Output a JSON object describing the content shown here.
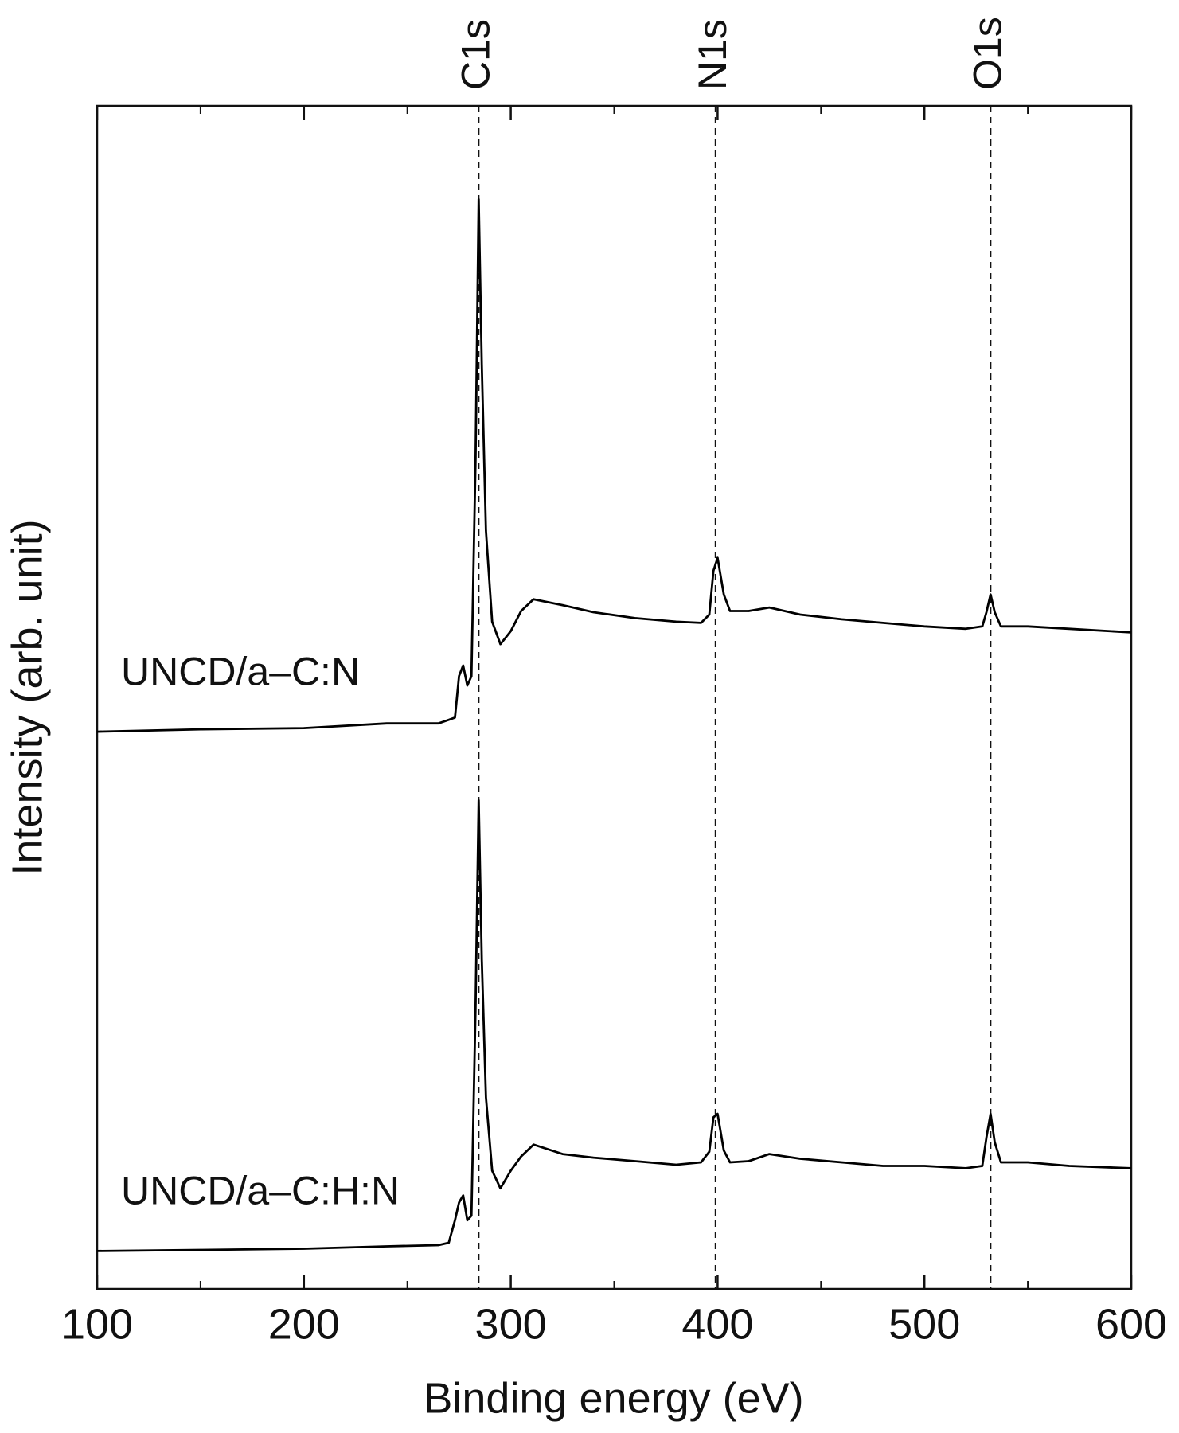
{
  "chart_data": {
    "type": "line",
    "xlabel": "Binding energy (eV)",
    "ylabel": "Intensity (arb. unit)",
    "x": [
      100,
      150,
      200,
      240,
      265,
      270,
      273,
      275,
      277,
      279,
      281,
      283,
      284.5,
      286,
      288,
      291,
      295,
      300,
      305,
      311,
      325,
      340,
      360,
      380,
      392,
      396,
      398,
      400,
      403,
      406,
      415,
      425,
      440,
      460,
      480,
      500,
      520,
      528,
      530,
      532,
      534,
      537,
      550,
      570,
      600
    ],
    "series": [
      {
        "name": "UNCD/a–C:N",
        "color": "#000000",
        "values": [
          47.1,
          47.3,
          47.4,
          47.8,
          47.8,
          48.1,
          48.3,
          51.8,
          52.7,
          51.0,
          51.8,
          70.3,
          92.1,
          78.1,
          64.1,
          56.4,
          54.5,
          55.6,
          57.3,
          58.3,
          57.8,
          57.2,
          56.7,
          56.4,
          56.3,
          57.0,
          60.7,
          61.8,
          58.7,
          57.3,
          57.3,
          57.6,
          57.0,
          56.6,
          56.3,
          56.0,
          55.8,
          56.0,
          57.2,
          58.7,
          57.2,
          56.0,
          56.0,
          55.8,
          55.5
        ]
      },
      {
        "name": "UNCD/a–C:H:N",
        "color": "#000000",
        "values": [
          3.2,
          3.3,
          3.4,
          3.6,
          3.7,
          3.9,
          5.8,
          7.3,
          7.9,
          5.8,
          6.2,
          24.0,
          41.3,
          27.8,
          16.2,
          10.0,
          8.5,
          10.0,
          11.2,
          12.2,
          11.4,
          11.1,
          10.8,
          10.5,
          10.7,
          11.6,
          14.5,
          14.8,
          11.7,
          10.7,
          10.8,
          11.4,
          11.0,
          10.7,
          10.4,
          10.4,
          10.2,
          10.4,
          12.8,
          14.8,
          12.4,
          10.7,
          10.7,
          10.4,
          10.2
        ]
      }
    ],
    "xlim": [
      100,
      600
    ],
    "xticks": [
      100,
      200,
      300,
      400,
      500,
      600
    ],
    "xminorticks": [
      150,
      250,
      350,
      450,
      550
    ],
    "ylim": [
      0,
      100
    ],
    "reference_lines": [
      {
        "x": 284.5,
        "label": "C1s"
      },
      {
        "x": 399,
        "label": "N1s"
      },
      {
        "x": 532,
        "label": "O1s"
      }
    ]
  }
}
